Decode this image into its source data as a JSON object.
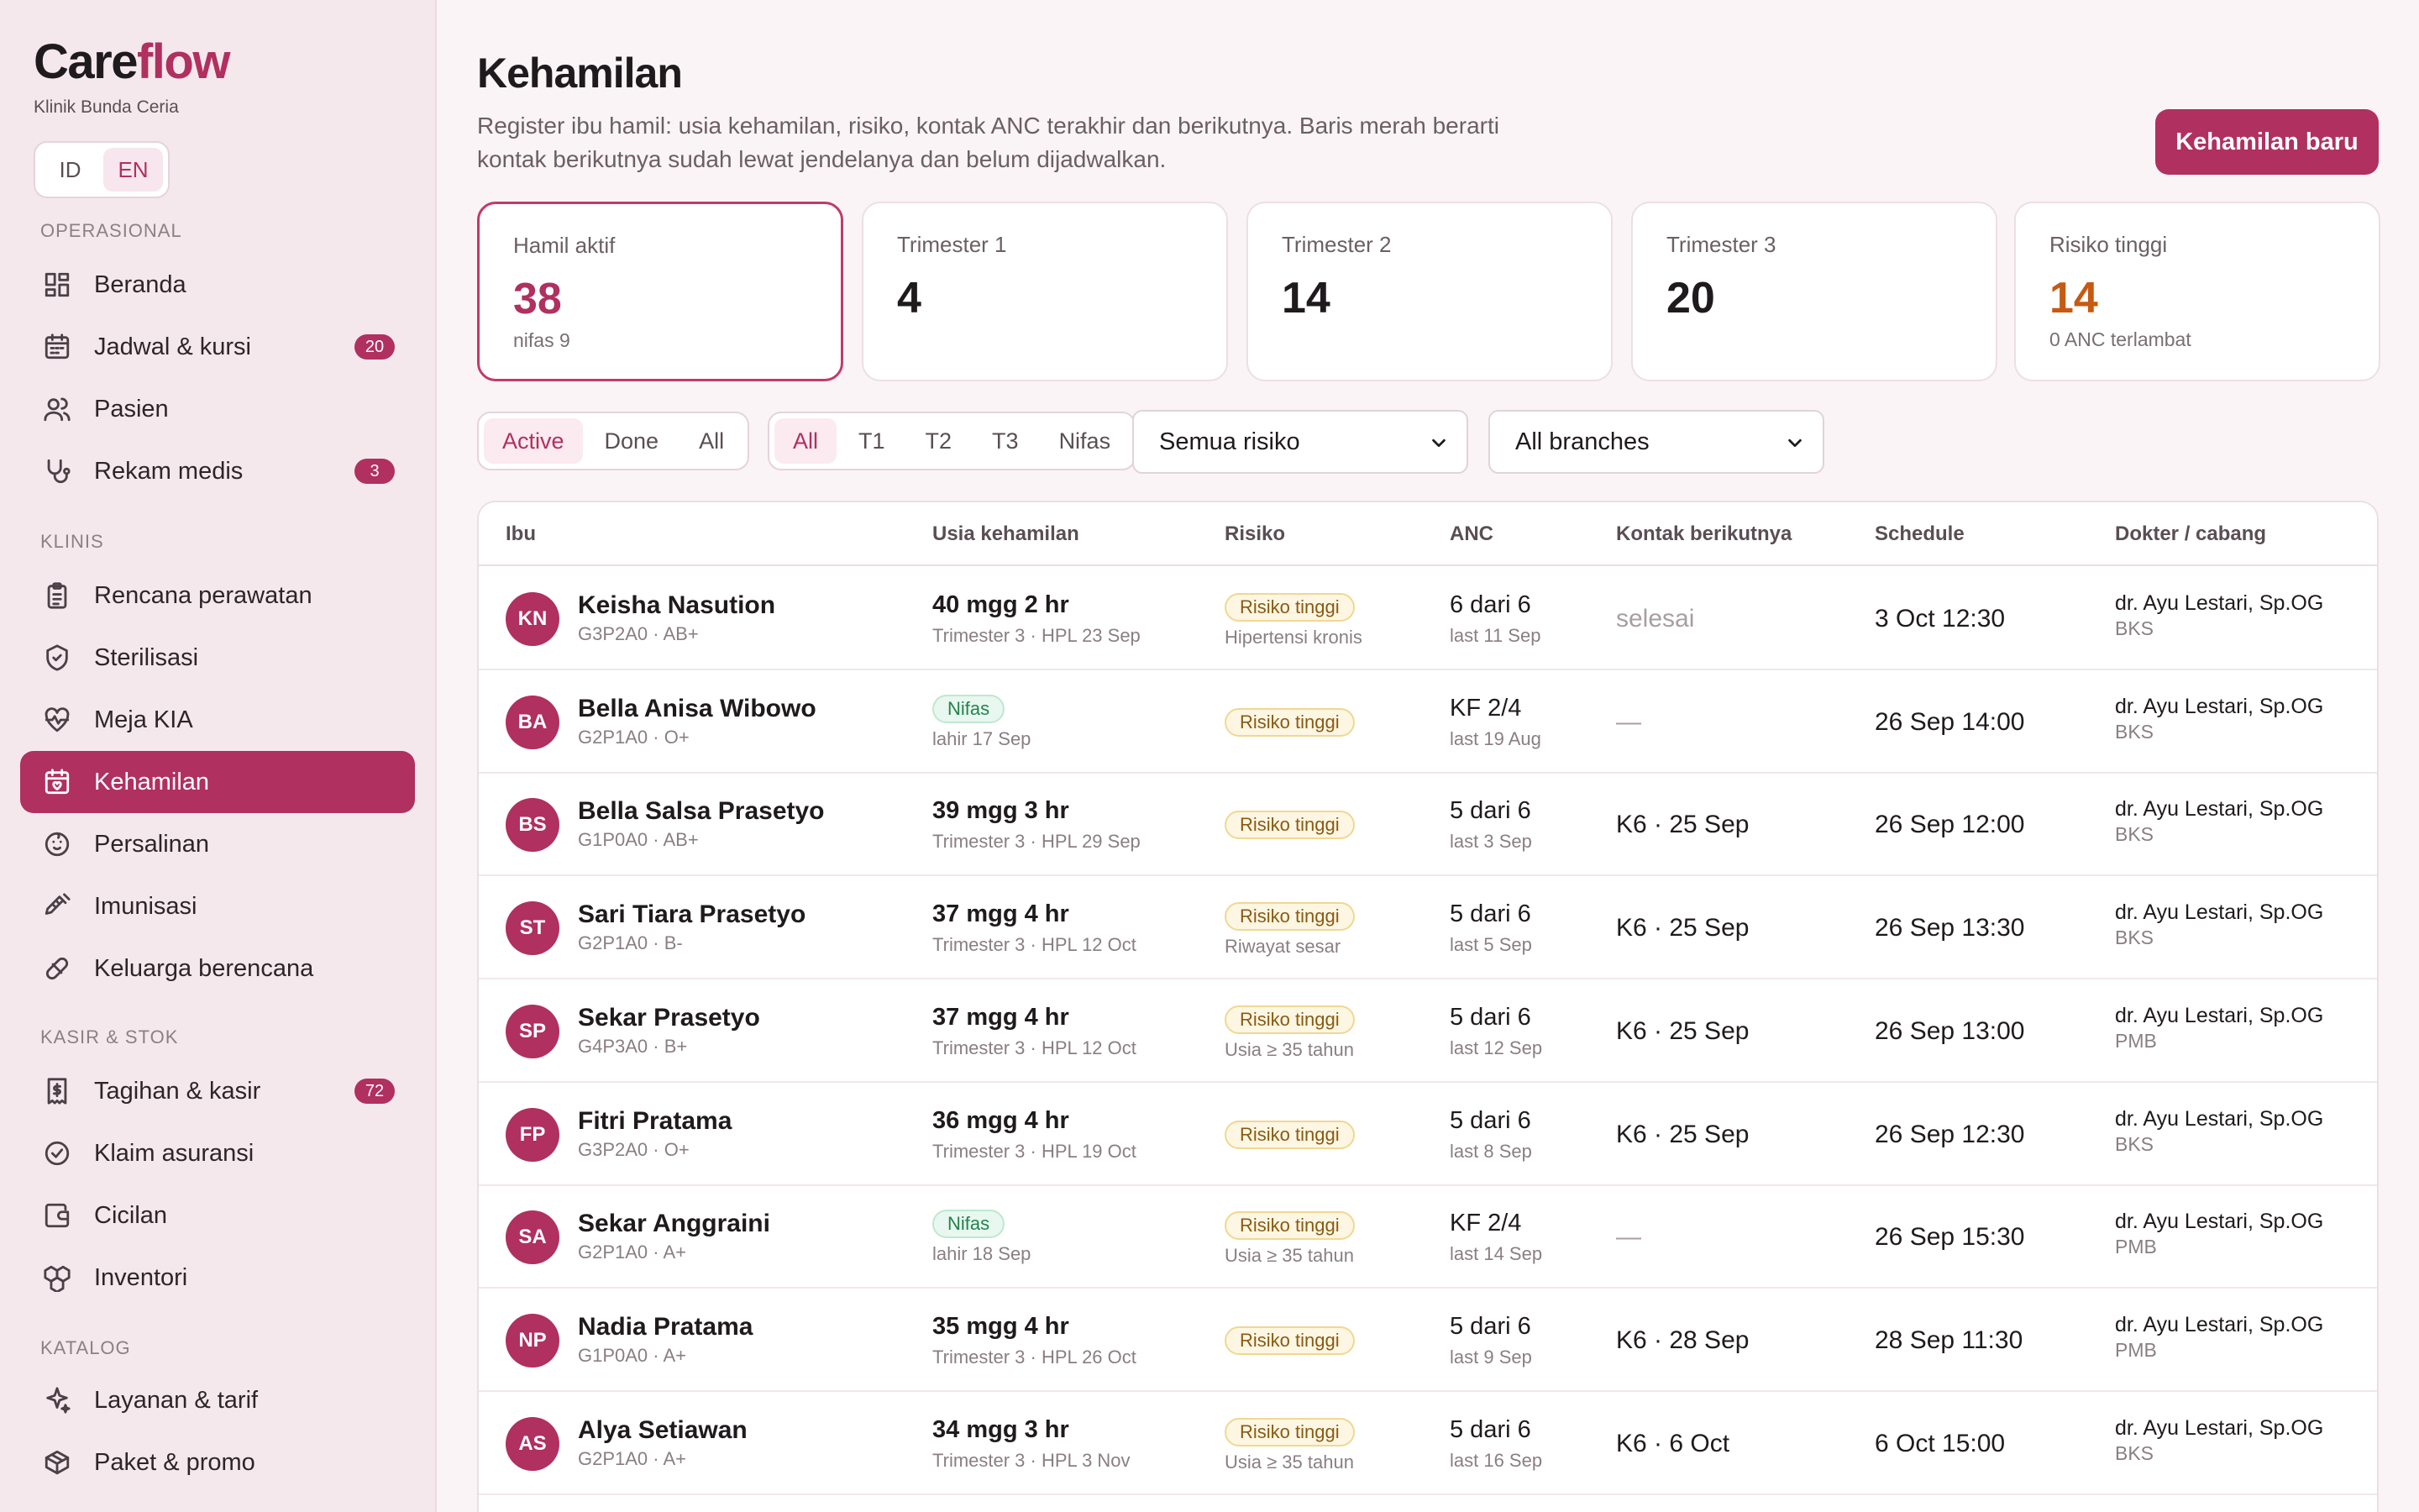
{
  "brand": {
    "name_a": "Care",
    "name_b": "flow",
    "clinic": "Klinik Bunda Ceria",
    "accent": "#b0305f"
  },
  "lang": {
    "id": "ID",
    "en": "EN",
    "active": "EN"
  },
  "sections": {
    "ops": "OPERASIONAL",
    "clinic": "KLINIS",
    "billing": "KASIR & STOK",
    "catalog": "KATALOG"
  },
  "nav": [
    {
      "label": "Beranda",
      "icon": "grid-icon"
    },
    {
      "label": "Jadwal & kursi",
      "icon": "calendar-icon",
      "badge": "20"
    },
    {
      "label": "Pasien",
      "icon": "users-icon"
    },
    {
      "label": "Rekam medis",
      "icon": "stethoscope-icon",
      "badge": "3"
    },
    {
      "label": "Rencana perawatan",
      "icon": "clipboard-icon"
    },
    {
      "label": "Sterilisasi",
      "icon": "shield-icon"
    },
    {
      "label": "Meja KIA",
      "icon": "heart-pulse-icon"
    },
    {
      "label": "Kehamilan",
      "icon": "calendar-heart-icon",
      "active": true
    },
    {
      "label": "Persalinan",
      "icon": "baby-icon"
    },
    {
      "label": "Imunisasi",
      "icon": "syringe-icon"
    },
    {
      "label": "Keluarga berencana",
      "icon": "pill-icon"
    },
    {
      "label": "Tagihan & kasir",
      "icon": "receipt-icon",
      "badge": "72"
    },
    {
      "label": "Klaim asuransi",
      "icon": "check-circle-icon"
    },
    {
      "label": "Cicilan",
      "icon": "wallet-icon"
    },
    {
      "label": "Inventori",
      "icon": "boxes-icon"
    },
    {
      "label": "Layanan & tarif",
      "icon": "sparkle-icon"
    },
    {
      "label": "Paket & promo",
      "icon": "package-icon"
    }
  ],
  "page": {
    "title": "Kehamilan",
    "description": "Register ibu hamil: usia kehamilan, risiko, kontak ANC terakhir dan berikutnya. Baris merah berarti kontak berikutnya sudah lewat jendelanya dan belum dijadwalkan.",
    "new_button": "Kehamilan baru"
  },
  "stats": [
    {
      "label": "Hamil aktif",
      "value": "38",
      "sub": "nifas 9"
    },
    {
      "label": "Trimester 1",
      "value": "4"
    },
    {
      "label": "Trimester 2",
      "value": "14"
    },
    {
      "label": "Trimester 3",
      "value": "20"
    },
    {
      "label": "Risiko tinggi",
      "value": "14",
      "sub": "0 ANC terlambat"
    }
  ],
  "filters": {
    "status": [
      "Active",
      "Done",
      "All"
    ],
    "status_active": "Active",
    "trimester": [
      "All",
      "T1",
      "T2",
      "T3",
      "Nifas"
    ],
    "trimester_active": "All",
    "risk_select": "Semua risiko",
    "branch_select": "All branches"
  },
  "table": {
    "headers": [
      "Ibu",
      "Usia kehamilan",
      "Risiko",
      "ANC",
      "Kontak berikutnya",
      "Schedule",
      "Dokter / cabang"
    ],
    "rows": [
      {
        "initials": "KN",
        "name": "Keisha Nasution",
        "obs": "G3P2A0 · AB+",
        "age": "40 mgg 2 hr",
        "age_sub": "Trimester 3 · HPL 23 Sep",
        "risk": "Risiko tinggi",
        "risk_note": "Hipertensi kronis",
        "anc": "6 dari 6",
        "anc_sub": "last 11 Sep",
        "next": "selesai",
        "schedule": "3 Oct 12:30",
        "doctor": "dr. Ayu Lestari, Sp.OG",
        "branch": "BKS"
      },
      {
        "initials": "BA",
        "name": "Bella Anisa Wibowo",
        "obs": "G2P1A0 · O+",
        "age_pill": "Nifas",
        "age_sub": "lahir 17 Sep",
        "risk": "Risiko tinggi",
        "anc": "KF 2/4",
        "anc_sub": "last 19 Aug",
        "next": "—",
        "schedule": "26 Sep 14:00",
        "doctor": "dr. Ayu Lestari, Sp.OG",
        "branch": "BKS"
      },
      {
        "initials": "BS",
        "name": "Bella Salsa Prasetyo",
        "obs": "G1P0A0 · AB+",
        "age": "39 mgg 3 hr",
        "age_sub": "Trimester 3 · HPL 29 Sep",
        "risk": "Risiko tinggi",
        "anc": "5 dari 6",
        "anc_sub": "last 3 Sep",
        "next": "K6 · 25 Sep",
        "schedule": "26 Sep 12:00",
        "doctor": "dr. Ayu Lestari, Sp.OG",
        "branch": "BKS"
      },
      {
        "initials": "ST",
        "name": "Sari Tiara Prasetyo",
        "obs": "G2P1A0 · B-",
        "age": "37 mgg 4 hr",
        "age_sub": "Trimester 3 · HPL 12 Oct",
        "risk": "Risiko tinggi",
        "risk_note": "Riwayat sesar",
        "anc": "5 dari 6",
        "anc_sub": "last 5 Sep",
        "next": "K6 · 25 Sep",
        "schedule": "26 Sep 13:30",
        "doctor": "dr. Ayu Lestari, Sp.OG",
        "branch": "BKS"
      },
      {
        "initials": "SP",
        "name": "Sekar Prasetyo",
        "obs": "G4P3A0 · B+",
        "age": "37 mgg 4 hr",
        "age_sub": "Trimester 3 · HPL 12 Oct",
        "risk": "Risiko tinggi",
        "risk_note": "Usia ≥ 35 tahun",
        "anc": "5 dari 6",
        "anc_sub": "last 12 Sep",
        "next": "K6 · 25 Sep",
        "schedule": "26 Sep 13:00",
        "doctor": "dr. Ayu Lestari, Sp.OG",
        "branch": "PMB"
      },
      {
        "initials": "FP",
        "name": "Fitri Pratama",
        "obs": "G3P2A0 · O+",
        "age": "36 mgg 4 hr",
        "age_sub": "Trimester 3 · HPL 19 Oct",
        "risk": "Risiko tinggi",
        "anc": "5 dari 6",
        "anc_sub": "last 8 Sep",
        "next": "K6 · 25 Sep",
        "schedule": "26 Sep 12:30",
        "doctor": "dr. Ayu Lestari, Sp.OG",
        "branch": "BKS"
      },
      {
        "initials": "SA",
        "name": "Sekar Anggraini",
        "obs": "G2P1A0 · A+",
        "age_pill": "Nifas",
        "age_sub": "lahir 18 Sep",
        "risk": "Risiko tinggi",
        "risk_note": "Usia ≥ 35 tahun",
        "anc": "KF 2/4",
        "anc_sub": "last 14 Sep",
        "next": "—",
        "schedule": "26 Sep 15:30",
        "doctor": "dr. Ayu Lestari, Sp.OG",
        "branch": "PMB"
      },
      {
        "initials": "NP",
        "name": "Nadia Pratama",
        "obs": "G1P0A0 · A+",
        "age": "35 mgg 4 hr",
        "age_sub": "Trimester 3 · HPL 26 Oct",
        "risk": "Risiko tinggi",
        "anc": "5 dari 6",
        "anc_sub": "last 9 Sep",
        "next": "K6 · 28 Sep",
        "schedule": "28 Sep 11:30",
        "doctor": "dr. Ayu Lestari, Sp.OG",
        "branch": "PMB"
      },
      {
        "initials": "AS",
        "name": "Alya Setiawan",
        "obs": "G2P1A0 · A+",
        "age": "34 mgg 3 hr",
        "age_sub": "Trimester 3 · HPL 3 Nov",
        "risk": "Risiko tinggi",
        "risk_note": "Usia ≥ 35 tahun",
        "anc": "5 dari 6",
        "anc_sub": "last 16 Sep",
        "next": "K6 · 6 Oct",
        "schedule": "6 Oct 15:00",
        "doctor": "dr. Ayu Lestari, Sp.OG",
        "branch": "BKS"
      }
    ]
  }
}
